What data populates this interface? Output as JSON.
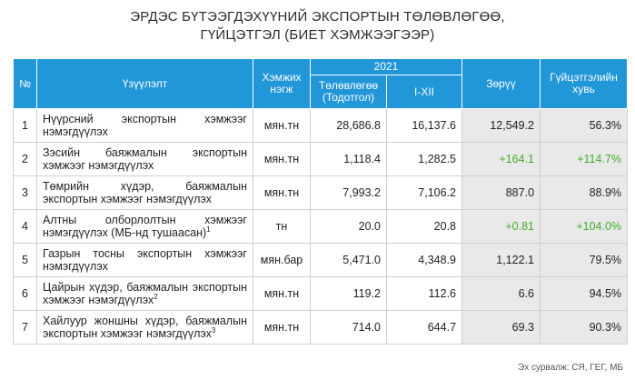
{
  "title": {
    "line1": "ЭРДЭС БҮТЭЭГДЭХҮҮНИЙ ЭКСПОРТЫН ТӨЛӨВЛӨГӨӨ,",
    "line2": "ГҮЙЦЭТГЭЛ (БИЕТ ХЭМЖЭЭГЭЭР)"
  },
  "table": {
    "headers": {
      "no": "№",
      "indicator": "Үзүүлэлт",
      "unit": "Хэмжих нэгж",
      "year": "2021",
      "plan": "Төлөвлөгөө (Тодотгол)",
      "actual": "I-XII",
      "diff": "Зөрүү",
      "rate": "Гүйцэтгэлийн хувь"
    },
    "rows": [
      {
        "no": "1",
        "name": "Нүүрсний экспортын хэмжээг нэмэгдүүлэх",
        "sup": "",
        "unit": "мян.тн",
        "plan": "28,686.8",
        "actual": "16,137.6",
        "diff": "12,549.2",
        "rate": "56.3%",
        "positive": false
      },
      {
        "no": "2",
        "name": "Зэсийн баяжмалын экспортын хэмжээг нэмэгдүүлэх",
        "sup": "",
        "unit": "мян.тн",
        "plan": "1,118.4",
        "actual": "1,282.5",
        "diff": "+164.1",
        "rate": "+114.7%",
        "positive": true
      },
      {
        "no": "3",
        "name": "Төмрийн хүдэр, баяжмалын экспортын хэмжээг нэмэгдүүлэх",
        "sup": "",
        "unit": "мян.тн",
        "plan": "7,993.2",
        "actual": "7,106.2",
        "diff": "887.0",
        "rate": "88.9%",
        "positive": false
      },
      {
        "no": "4",
        "name": "Алтны олборлолтын хэмжээг нэмэгдүүлэх (МБ-нд тушаасан)",
        "sup": "1",
        "unit": "тн",
        "plan": "20.0",
        "actual": "20.8",
        "diff": "+0.81",
        "rate": "+104.0%",
        "positive": true
      },
      {
        "no": "5",
        "name": "Газрын тосны экспортын хэмжээг нэмэгдүүлэх",
        "sup": "",
        "unit": "мян.бар",
        "plan": "5,471.0",
        "actual": "4,348.9",
        "diff": "1,122.1",
        "rate": "79.5%",
        "positive": false
      },
      {
        "no": "6",
        "name": "Цайрын хүдэр, баяжмалын экспортын хэмжээг нэмэгдүүлэх",
        "sup": "2",
        "unit": "мян.тн",
        "plan": "119.2",
        "actual": "112.6",
        "diff": "6.6",
        "rate": "94.5%",
        "positive": false
      },
      {
        "no": "7",
        "name": "Хайлуур жоншны хүдэр, баяжмалын экспортын хэмжээг нэмэгдүүлэх",
        "sup": "3",
        "unit": "мян.тн",
        "plan": "714.0",
        "actual": "644.7",
        "diff": "69.3",
        "rate": "90.3%",
        "positive": false
      }
    ]
  },
  "source": "Эх сурвалж: СЯ, ГЕГ, МБ",
  "colors": {
    "header": "#2196d8",
    "positive": "#3fae2a",
    "shade": "#e9e9e9"
  }
}
